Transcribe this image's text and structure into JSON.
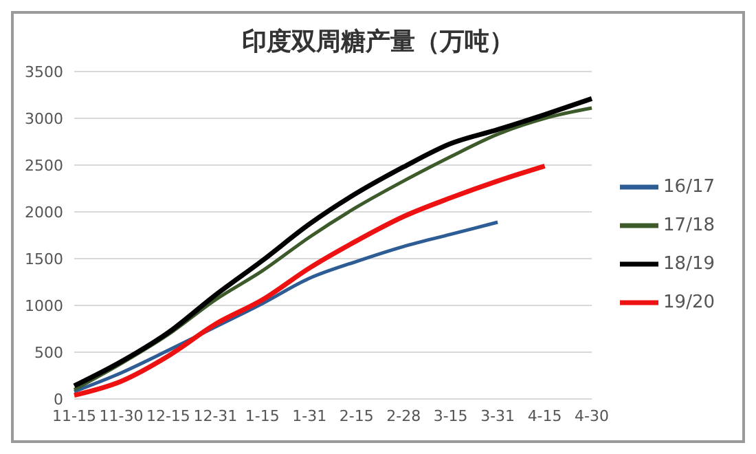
{
  "chart_data": {
    "type": "line",
    "title": "印度双周糖产量（万吨）",
    "categories": [
      "11-15",
      "11-30",
      "12-15",
      "12-31",
      "1-15",
      "1-31",
      "2-15",
      "2-28",
      "3-15",
      "3-31",
      "4-15",
      "4-30"
    ],
    "series": [
      {
        "name": "16/17",
        "color": "#2e5c94",
        "values": [
          80,
          280,
          520,
          770,
          1020,
          1290,
          1470,
          1630,
          1760,
          1890,
          null,
          null
        ]
      },
      {
        "name": "17/18",
        "color": "#3d5a2a",
        "values": [
          100,
          380,
          690,
          1060,
          1370,
          1730,
          2050,
          2330,
          2590,
          2830,
          3000,
          3110
        ]
      },
      {
        "name": "18/19",
        "color": "#000000",
        "values": [
          140,
          400,
          710,
          1110,
          1480,
          1870,
          2200,
          2480,
          2730,
          2880,
          3040,
          3210
        ]
      },
      {
        "name": "19/20",
        "color": "#ee1111",
        "values": [
          40,
          190,
          460,
          800,
          1060,
          1400,
          1690,
          1950,
          2150,
          2330,
          2490,
          null
        ]
      }
    ],
    "ylim": [
      0,
      3500
    ],
    "yticks": [
      0,
      500,
      1000,
      1500,
      2000,
      2500,
      3000,
      3500
    ],
    "grid": "y",
    "legend": "right",
    "marker": "none",
    "line_style": "solid"
  }
}
